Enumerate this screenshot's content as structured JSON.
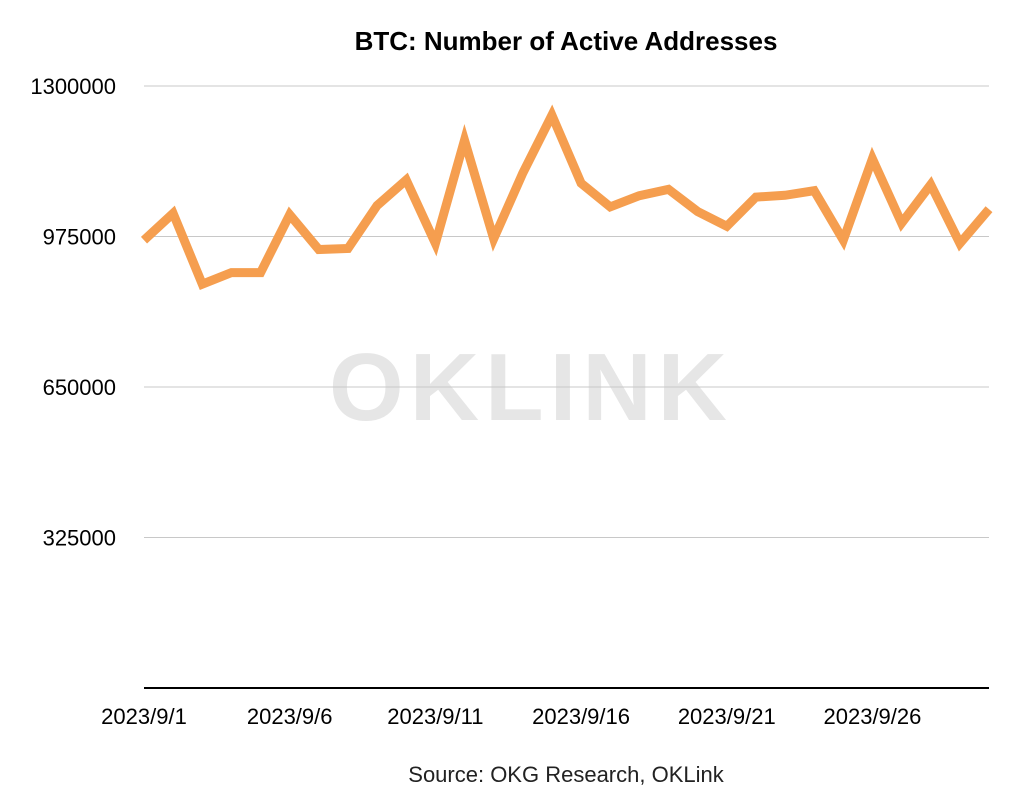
{
  "chart_data": {
    "type": "line",
    "title": "BTC: Number of Active Addresses",
    "xlabel": "",
    "ylabel": "",
    "ylim": [
      0,
      1300000
    ],
    "yticks": [
      325000,
      650000,
      975000,
      1300000
    ],
    "ytick_labels": [
      "325000",
      "650000",
      "975000",
      "1300000"
    ],
    "x_tick_labels": [
      "2023/9/1",
      "2023/9/6",
      "2023/9/11",
      "2023/9/16",
      "2023/9/21",
      "2023/9/26"
    ],
    "x_tick_indices": [
      0,
      5,
      10,
      15,
      20,
      25
    ],
    "grid": true,
    "series": [
      {
        "name": "Active Addresses",
        "color": "#f59e4f",
        "x": [
          "2023/9/1",
          "2023/9/2",
          "2023/9/3",
          "2023/9/4",
          "2023/9/5",
          "2023/9/6",
          "2023/9/7",
          "2023/9/8",
          "2023/9/9",
          "2023/9/10",
          "2023/9/11",
          "2023/9/12",
          "2023/9/13",
          "2023/9/14",
          "2023/9/15",
          "2023/9/16",
          "2023/9/17",
          "2023/9/18",
          "2023/9/19",
          "2023/9/20",
          "2023/9/21",
          "2023/9/22",
          "2023/9/23",
          "2023/9/24",
          "2023/9/25",
          "2023/9/26",
          "2023/9/27",
          "2023/9/28",
          "2023/9/29",
          "2023/9/30"
        ],
        "values": [
          967000,
          1025000,
          872000,
          897000,
          897000,
          1022000,
          947000,
          949000,
          1042000,
          1097000,
          960000,
          1183000,
          970000,
          1112000,
          1237000,
          1090000,
          1039000,
          1063000,
          1077000,
          1029000,
          997000,
          1060000,
          1064000,
          1074000,
          967000,
          1143000,
          1004000,
          1087000,
          960000,
          1034000
        ]
      }
    ],
    "source": "Source: OKG Research, OKLink",
    "watermark": "OKLINK"
  }
}
